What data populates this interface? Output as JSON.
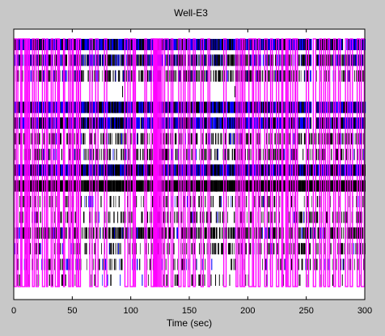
{
  "figure": {
    "background": "#c8c8c8",
    "plot_background": "#ffffff"
  },
  "chart_data": {
    "type": "raster",
    "title": "Well-E3",
    "xlabel": "Time (sec)",
    "ylabel": "",
    "xlim": [
      0,
      300
    ],
    "x_ticks": [
      0,
      50,
      100,
      150,
      200,
      250,
      300
    ],
    "x_tick_labels": [
      "0",
      "50",
      "100",
      "150",
      "200",
      "250",
      "300"
    ],
    "channel_count": 16,
    "grid": false,
    "legend": "none",
    "colors": {
      "spike_black": "#000000",
      "spike_blue": "#0000ff",
      "burst_box": "#ff00ff"
    },
    "rows": [
      {
        "density": 1.0,
        "blue": 0.55,
        "gaps": [
          [
            120,
            123
          ],
          [
            254,
            258
          ],
          [
            281,
            284
          ]
        ]
      },
      {
        "density": 0.85,
        "blue": 0.35,
        "gaps": [
          [
            120,
            123
          ],
          [
            254,
            258
          ]
        ]
      },
      {
        "density": 0.55,
        "blue": 0.15,
        "gaps": [
          [
            120,
            123
          ],
          [
            254,
            258
          ]
        ]
      },
      {
        "density": 0.0,
        "blue": 0.0,
        "gaps": [],
        "sparse": [
          93,
          189
        ]
      },
      {
        "density": 1.0,
        "blue": 0.5,
        "gaps": [
          [
            120,
            123
          ],
          [
            254,
            258
          ]
        ]
      },
      {
        "density": 0.95,
        "blue": 0.5,
        "gaps": [
          [
            120,
            123
          ],
          [
            254,
            258
          ]
        ]
      },
      {
        "density": 0.45,
        "blue": 0.1,
        "gaps": [
          [
            120,
            123
          ]
        ]
      },
      {
        "density": 0.4,
        "blue": 0.08,
        "gaps": [
          [
            120,
            123
          ]
        ]
      },
      {
        "density": 1.0,
        "blue": 0.45,
        "gaps": [
          [
            120,
            123
          ]
        ]
      },
      {
        "density": 1.0,
        "blue": 0.0,
        "gaps": [
          [
            120,
            123
          ]
        ]
      },
      {
        "density": 0.25,
        "blue": 0.05,
        "gaps": []
      },
      {
        "density": 0.3,
        "blue": 0.05,
        "gaps": []
      },
      {
        "density": 0.6,
        "blue": 0.1,
        "gaps": [
          [
            120,
            123
          ]
        ]
      },
      {
        "density": 0.3,
        "blue": 0.08,
        "gaps": []
      },
      {
        "density": 0.22,
        "blue": 0.25,
        "gaps": []
      },
      {
        "density": 0.12,
        "blue": 0.1,
        "gaps": []
      }
    ],
    "burst_windows": [
      [
        0.5,
        2.2
      ],
      [
        3.5,
        6
      ],
      [
        7,
        9.5
      ],
      [
        10.5,
        11.5
      ],
      [
        12.5,
        13.5
      ],
      [
        16,
        17.5
      ],
      [
        19,
        21
      ],
      [
        24.5,
        26.5
      ],
      [
        28,
        29
      ],
      [
        32,
        33.5
      ],
      [
        35.5,
        37.5
      ],
      [
        38,
        39
      ],
      [
        42.5,
        43.5
      ],
      [
        47,
        48.5
      ],
      [
        50,
        51
      ],
      [
        53.5,
        54.8
      ],
      [
        55.5,
        57
      ],
      [
        65,
        67
      ],
      [
        70,
        72
      ],
      [
        77.5,
        79.5
      ],
      [
        95,
        97.5
      ],
      [
        99.5,
        102
      ],
      [
        103,
        104
      ],
      [
        112,
        113.5
      ],
      [
        117.5,
        119.5
      ],
      [
        119.6,
        123
      ],
      [
        124,
        125
      ],
      [
        126,
        127.5
      ],
      [
        129,
        132
      ],
      [
        134.5,
        136
      ],
      [
        141,
        143
      ],
      [
        145,
        146.5
      ],
      [
        149,
        150.5
      ],
      [
        153.5,
        155
      ],
      [
        160,
        162
      ],
      [
        166,
        167.5
      ],
      [
        179.5,
        181.5
      ],
      [
        190,
        191.5
      ],
      [
        193.5,
        195
      ],
      [
        196,
        197.5
      ],
      [
        201,
        204
      ],
      [
        205,
        207
      ],
      [
        209,
        210.5
      ],
      [
        214.5,
        216.5
      ],
      [
        219.5,
        221
      ],
      [
        224.5,
        226.5
      ],
      [
        229,
        230
      ],
      [
        232.5,
        233.5
      ],
      [
        234.5,
        236.5
      ],
      [
        238.5,
        240.5
      ],
      [
        241,
        242.5
      ],
      [
        250,
        252
      ],
      [
        256,
        258
      ],
      [
        261.5,
        263
      ],
      [
        265,
        266.5
      ],
      [
        268.5,
        270
      ],
      [
        273.5,
        275
      ],
      [
        277.5,
        279
      ],
      [
        283.5,
        285.5
      ],
      [
        287.5,
        289.5
      ],
      [
        293.5,
        295.5
      ],
      [
        297,
        299.5
      ]
    ]
  }
}
